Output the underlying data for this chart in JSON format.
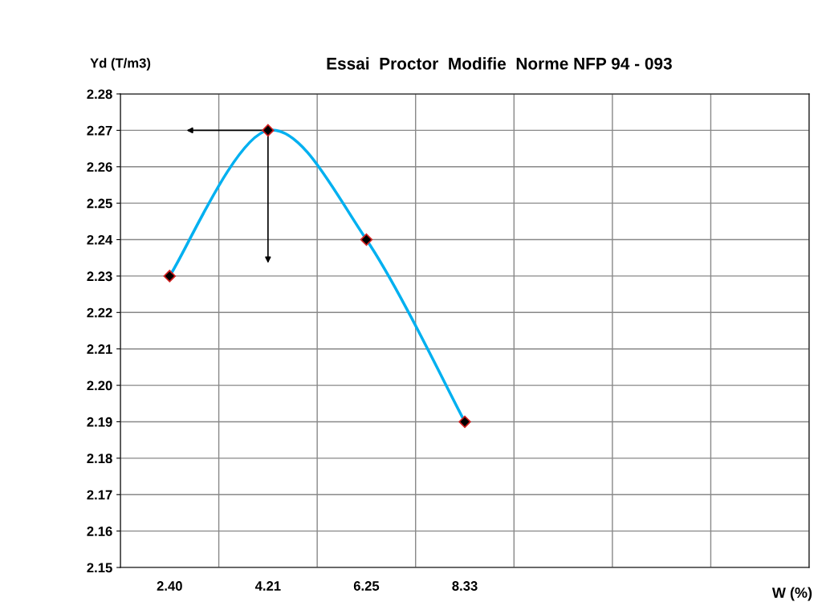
{
  "chart_data": {
    "type": "line",
    "title": "Essai  Proctor  Modifie  Norme NFP 94 - 093",
    "xlabel": "W (%)",
    "ylabel": "Yd (T/m3)",
    "categories": [
      "2.40",
      "4.21",
      "6.25",
      "8.33",
      null,
      null,
      null
    ],
    "series": [
      {
        "color": "#00b0f0",
        "values": [
          2.23,
          2.27,
          2.24,
          2.19,
          null,
          null,
          null
        ]
      }
    ],
    "marker": "diamond",
    "ylim": [
      2.15,
      2.28
    ],
    "yticks": [
      2.15,
      2.16,
      2.17,
      2.18,
      2.19,
      {
        "value": 2.2,
        "label": "2.20"
      },
      2.21,
      2.22,
      2.23,
      2.24,
      2.25,
      2.26,
      2.27,
      2.28
    ],
    "grid": true,
    "legend": false
  }
}
